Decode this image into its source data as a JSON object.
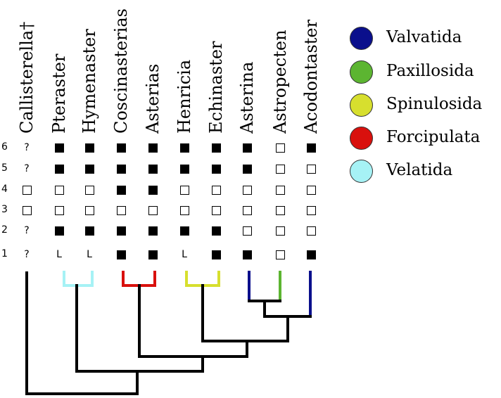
{
  "taxa": [
    "Callisterella†",
    "Pteraster",
    "Hymenaster",
    "Coscinasterias",
    "Asterias",
    "Henricia",
    "Echinaster",
    "Asterina",
    "Astropecten",
    "Acodontaster"
  ],
  "character_rows": [
    "6",
    "5",
    "4",
    "3",
    "2",
    "1"
  ],
  "matrix": [
    [
      "?",
      "F",
      "F",
      "F",
      "F",
      "F",
      "F",
      "F",
      "E",
      "F"
    ],
    [
      "?",
      "F",
      "F",
      "F",
      "F",
      "F",
      "F",
      "F",
      "E",
      "E"
    ],
    [
      "E",
      "E",
      "E",
      "F",
      "F",
      "E",
      "E",
      "E",
      "E",
      "E"
    ],
    [
      "E",
      "E",
      "E",
      "E",
      "E",
      "E",
      "E",
      "E",
      "E",
      "E"
    ],
    [
      "?",
      "F",
      "F",
      "F",
      "F",
      "F",
      "F",
      "E",
      "E",
      "E"
    ],
    [
      "?",
      "L",
      "L",
      "F",
      "F",
      "L",
      "F",
      "F",
      "E",
      "F"
    ]
  ],
  "legend": [
    {
      "label": "Valvatida",
      "color": "#0a0f8c"
    },
    {
      "label": "Paxillosida",
      "color": "#5cb531"
    },
    {
      "label": "Spinulosida",
      "color": "#d7df2e"
    },
    {
      "label": "Forcipulata",
      "color": "#d9100d"
    },
    {
      "label": "Velatida",
      "color": "#a6f2f5"
    }
  ],
  "clade_colors": {
    "Velatida": "#a6f2f5",
    "Forcipulata": "#d9100d",
    "Spinulosida": "#d7df2e",
    "Valvatida": "#0a0f8c",
    "Paxillosida": "#5cb531",
    "tree": "#000000"
  }
}
